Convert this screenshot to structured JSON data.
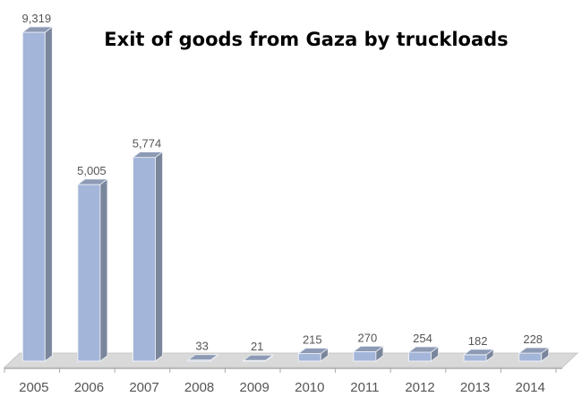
{
  "chart_data": {
    "type": "bar",
    "title": "Exit of goods from Gaza by truckloads",
    "categories": [
      "2005",
      "2006",
      "2007",
      "2008",
      "2009",
      "2010",
      "2011",
      "2012",
      "2013",
      "2014"
    ],
    "values": [
      9319,
      5005,
      5774,
      33,
      21,
      215,
      270,
      254,
      182,
      228
    ],
    "value_labels": [
      "9,319",
      "5,005",
      "5,774",
      "33",
      "21",
      "215",
      "270",
      "254",
      "182",
      "228"
    ],
    "xlabel": "",
    "ylabel": "",
    "ylim": [
      0,
      9319
    ],
    "grid": false,
    "colors": {
      "front": "#a3b5d8",
      "side": "#7a869b",
      "top": "#8d9ab4",
      "floor": "#d9d9d9"
    }
  }
}
